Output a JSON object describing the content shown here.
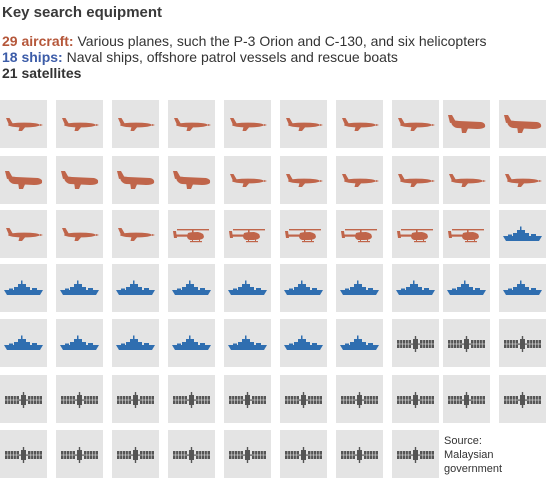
{
  "title": "Key search equipment",
  "legend": [
    {
      "count": "29 aircraft:",
      "text": " Various planes, such the P-3 Orion and C-130, and six helicopters",
      "color": "#b5573a"
    },
    {
      "count": "18 ships:",
      "text": " Naval ships, offshore patrol vessels and rescue boats",
      "color": "#3c5ca8"
    },
    {
      "count": "21 satellites",
      "text": "",
      "color": "#333333"
    }
  ],
  "colors": {
    "aircraft": "#c0654a",
    "ship": "#2f6eb0",
    "satellite": "#555555",
    "cell_bg": "#e4e4e4"
  },
  "items": [
    "plane",
    "plane",
    "plane",
    "plane",
    "plane",
    "plane",
    "plane",
    "plane",
    "cargo-plane",
    "cargo-plane",
    "cargo-plane",
    "cargo-plane",
    "cargo-plane",
    "cargo-plane",
    "plane",
    "plane",
    "plane",
    "plane",
    "plane",
    "plane",
    "plane",
    "plane",
    "plane",
    "helicopter",
    "helicopter",
    "helicopter",
    "helicopter",
    "helicopter",
    "helicopter",
    "ship",
    "ship",
    "ship",
    "ship",
    "ship",
    "ship",
    "ship",
    "ship",
    "ship",
    "ship",
    "ship",
    "ship",
    "ship",
    "ship",
    "ship",
    "ship",
    "ship",
    "ship",
    "satellite",
    "satellite",
    "satellite",
    "satellite",
    "satellite",
    "satellite",
    "satellite",
    "satellite",
    "satellite",
    "satellite",
    "satellite",
    "satellite",
    "satellite",
    "satellite",
    "satellite",
    "satellite",
    "satellite",
    "satellite",
    "satellite",
    "satellite",
    "satellite"
  ],
  "source": {
    "label": "Source:",
    "org_line1": "Malaysian",
    "org_line2": "government"
  }
}
